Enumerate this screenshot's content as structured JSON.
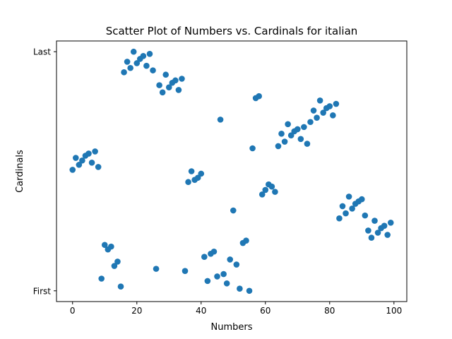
{
  "chart_data": {
    "type": "scatter",
    "title": "Scatter Plot of Numbers vs. Cardinals for italian",
    "xlabel": "Numbers",
    "ylabel": "Cardinals",
    "xlim": [
      -5,
      104
    ],
    "ylim": [
      -0.045,
      1.045
    ],
    "xticks": [
      0,
      20,
      40,
      60,
      80,
      100
    ],
    "yticks": [
      {
        "value": 0,
        "label": "First"
      },
      {
        "value": 1,
        "label": "Last"
      }
    ],
    "marker_color": "#1f77b4",
    "grid": false,
    "points": [
      {
        "x": 0,
        "y": 0.506
      },
      {
        "x": 1,
        "y": 0.556
      },
      {
        "x": 2,
        "y": 0.527
      },
      {
        "x": 3,
        "y": 0.545
      },
      {
        "x": 4,
        "y": 0.565
      },
      {
        "x": 5,
        "y": 0.574
      },
      {
        "x": 6,
        "y": 0.536
      },
      {
        "x": 7,
        "y": 0.583
      },
      {
        "x": 8,
        "y": 0.518
      },
      {
        "x": 9,
        "y": 0.051
      },
      {
        "x": 10,
        "y": 0.192
      },
      {
        "x": 11,
        "y": 0.173
      },
      {
        "x": 12,
        "y": 0.185
      },
      {
        "x": 13,
        "y": 0.104
      },
      {
        "x": 14,
        "y": 0.122
      },
      {
        "x": 15,
        "y": 0.018
      },
      {
        "x": 16,
        "y": 0.914
      },
      {
        "x": 17,
        "y": 0.958
      },
      {
        "x": 18,
        "y": 0.932
      },
      {
        "x": 19,
        "y": 1.0
      },
      {
        "x": 20,
        "y": 0.952
      },
      {
        "x": 21,
        "y": 0.97
      },
      {
        "x": 22,
        "y": 0.982
      },
      {
        "x": 23,
        "y": 0.941
      },
      {
        "x": 24,
        "y": 0.991
      },
      {
        "x": 25,
        "y": 0.922
      },
      {
        "x": 26,
        "y": 0.092
      },
      {
        "x": 27,
        "y": 0.86
      },
      {
        "x": 28,
        "y": 0.83
      },
      {
        "x": 29,
        "y": 0.904
      },
      {
        "x": 30,
        "y": 0.851
      },
      {
        "x": 31,
        "y": 0.87
      },
      {
        "x": 32,
        "y": 0.88
      },
      {
        "x": 33,
        "y": 0.84
      },
      {
        "x": 34,
        "y": 0.887
      },
      {
        "x": 35,
        "y": 0.083
      },
      {
        "x": 36,
        "y": 0.455
      },
      {
        "x": 37,
        "y": 0.5
      },
      {
        "x": 38,
        "y": 0.464
      },
      {
        "x": 39,
        "y": 0.473
      },
      {
        "x": 40,
        "y": 0.49
      },
      {
        "x": 41,
        "y": 0.142
      },
      {
        "x": 42,
        "y": 0.041
      },
      {
        "x": 43,
        "y": 0.155
      },
      {
        "x": 44,
        "y": 0.164
      },
      {
        "x": 45,
        "y": 0.06
      },
      {
        "x": 46,
        "y": 0.716
      },
      {
        "x": 47,
        "y": 0.07
      },
      {
        "x": 48,
        "y": 0.031
      },
      {
        "x": 49,
        "y": 0.131
      },
      {
        "x": 50,
        "y": 0.336
      },
      {
        "x": 51,
        "y": 0.11
      },
      {
        "x": 52,
        "y": 0.009
      },
      {
        "x": 53,
        "y": 0.2
      },
      {
        "x": 54,
        "y": 0.21
      },
      {
        "x": 55,
        "y": 0.0
      },
      {
        "x": 56,
        "y": 0.596
      },
      {
        "x": 57,
        "y": 0.806
      },
      {
        "x": 58,
        "y": 0.814
      },
      {
        "x": 59,
        "y": 0.403
      },
      {
        "x": 60,
        "y": 0.422
      },
      {
        "x": 61,
        "y": 0.445
      },
      {
        "x": 62,
        "y": 0.436
      },
      {
        "x": 63,
        "y": 0.414
      },
      {
        "x": 64,
        "y": 0.605
      },
      {
        "x": 65,
        "y": 0.657
      },
      {
        "x": 66,
        "y": 0.624
      },
      {
        "x": 67,
        "y": 0.697
      },
      {
        "x": 68,
        "y": 0.65
      },
      {
        "x": 69,
        "y": 0.667
      },
      {
        "x": 70,
        "y": 0.676
      },
      {
        "x": 71,
        "y": 0.635
      },
      {
        "x": 72,
        "y": 0.685
      },
      {
        "x": 73,
        "y": 0.615
      },
      {
        "x": 74,
        "y": 0.706
      },
      {
        "x": 75,
        "y": 0.754
      },
      {
        "x": 76,
        "y": 0.724
      },
      {
        "x": 77,
        "y": 0.796
      },
      {
        "x": 78,
        "y": 0.745
      },
      {
        "x": 79,
        "y": 0.764
      },
      {
        "x": 80,
        "y": 0.772
      },
      {
        "x": 81,
        "y": 0.734
      },
      {
        "x": 82,
        "y": 0.782
      },
      {
        "x": 83,
        "y": 0.303
      },
      {
        "x": 84,
        "y": 0.354
      },
      {
        "x": 85,
        "y": 0.324
      },
      {
        "x": 86,
        "y": 0.394
      },
      {
        "x": 87,
        "y": 0.344
      },
      {
        "x": 88,
        "y": 0.364
      },
      {
        "x": 89,
        "y": 0.374
      },
      {
        "x": 90,
        "y": 0.383
      },
      {
        "x": 91,
        "y": 0.315
      },
      {
        "x": 92,
        "y": 0.252
      },
      {
        "x": 93,
        "y": 0.222
      },
      {
        "x": 94,
        "y": 0.293
      },
      {
        "x": 95,
        "y": 0.243
      },
      {
        "x": 96,
        "y": 0.262
      },
      {
        "x": 97,
        "y": 0.272
      },
      {
        "x": 98,
        "y": 0.234
      },
      {
        "x": 99,
        "y": 0.285
      }
    ]
  }
}
